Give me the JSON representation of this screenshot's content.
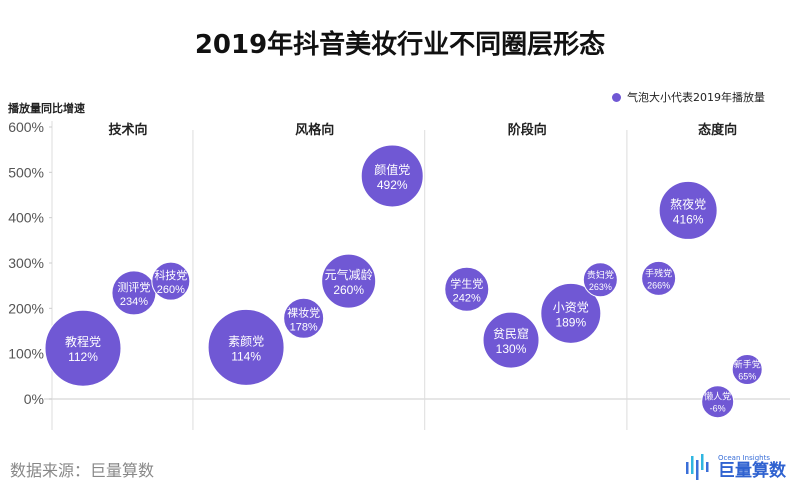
{
  "chart_data": {
    "type": "scatter",
    "subtype": "bubble",
    "title": "2019年抖音美妆行业不同圈层形态",
    "ylabel": "播放量同比增速",
    "xlabel": "",
    "ylim": [
      0,
      600
    ],
    "xlim": [
      0,
      100
    ],
    "yticks": [
      "0%",
      "100%",
      "200%",
      "300%",
      "400%",
      "500%",
      "600%"
    ],
    "ytick_values": [
      0,
      100,
      200,
      300,
      400,
      500,
      600
    ],
    "legend": "气泡大小代表2019年播放量",
    "legend_placement": "top-right",
    "grid": false,
    "color": "#7058d4",
    "groups": [
      {
        "name": "技术向",
        "center": 10.3
      },
      {
        "name": "风格向",
        "center": 35.6
      },
      {
        "name": "阶段向",
        "center": 64.4
      },
      {
        "name": "态度向",
        "center": 90.2
      }
    ],
    "dividers": [
      19.1,
      50.5,
      77.9
    ],
    "points": [
      {
        "name": "教程党",
        "label": "112%",
        "x": 4.2,
        "y": 112,
        "size": 38,
        "group": "技术向"
      },
      {
        "name": "测评党",
        "label": "234%",
        "x": 11.1,
        "y": 234,
        "size": 22,
        "group": "技术向"
      },
      {
        "name": "科技党",
        "label": "260%",
        "x": 16.1,
        "y": 260,
        "size": 19,
        "group": "技术向"
      },
      {
        "name": "素颜党",
        "label": "114%",
        "x": 26.3,
        "y": 114,
        "size": 38,
        "group": "风格向"
      },
      {
        "name": "裸妆党",
        "label": "178%",
        "x": 34.1,
        "y": 178,
        "size": 20,
        "group": "风格向"
      },
      {
        "name": "元气减龄",
        "label": "260%",
        "x": 40.2,
        "y": 260,
        "size": 27,
        "group": "风格向"
      },
      {
        "name": "颜值党",
        "label": "492%",
        "x": 46.1,
        "y": 492,
        "size": 31,
        "group": "风格向"
      },
      {
        "name": "学生党",
        "label": "242%",
        "x": 56.2,
        "y": 242,
        "size": 22,
        "group": "阶段向"
      },
      {
        "name": "贫民窟",
        "label": "130%",
        "x": 62.2,
        "y": 130,
        "size": 28,
        "group": "阶段向"
      },
      {
        "name": "小资党",
        "label": "189%",
        "x": 70.3,
        "y": 189,
        "size": 30,
        "group": "阶段向"
      },
      {
        "name": "贵妇党",
        "label": "263%",
        "x": 74.3,
        "y": 263,
        "size": 17,
        "group": "阶段向"
      },
      {
        "name": "手残党",
        "label": "266%",
        "x": 82.2,
        "y": 266,
        "size": 17,
        "group": "态度向"
      },
      {
        "name": "熬夜党",
        "label": "416%",
        "x": 86.2,
        "y": 416,
        "size": 29,
        "group": "态度向"
      },
      {
        "name": "懒人党",
        "label": "-6%",
        "x": 90.2,
        "y": -6,
        "size": 16,
        "group": "态度向"
      },
      {
        "name": "新手党",
        "label": "65%",
        "x": 94.2,
        "y": 65,
        "size": 15,
        "group": "态度向"
      }
    ]
  },
  "footer": {
    "source": "数据来源：巨量算数",
    "logo_sub": "Ocean Insights",
    "logo_main": "巨量算数"
  }
}
